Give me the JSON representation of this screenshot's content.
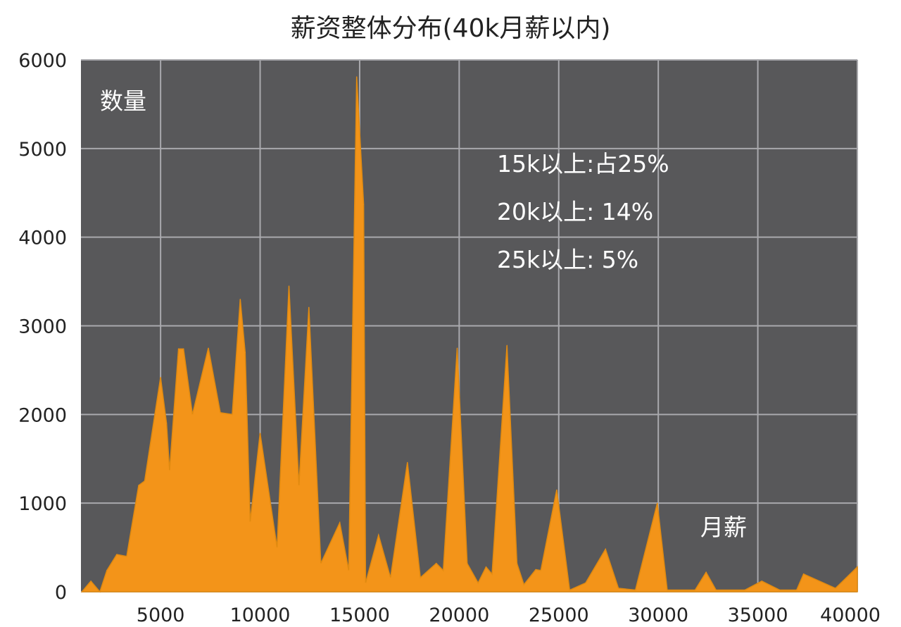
{
  "chart_data": {
    "type": "area",
    "title": "薪资整体分布(40k月薪以内)",
    "xlabel": "月薪",
    "ylabel": "数量",
    "xlim": [
      1000,
      40000
    ],
    "ylim": [
      0,
      6000
    ],
    "grid": true,
    "x_ticks": [
      5000,
      10000,
      15000,
      20000,
      25000,
      30000,
      35000,
      40000
    ],
    "y_ticks": [
      0,
      1000,
      2000,
      3000,
      4000,
      5000,
      6000
    ],
    "annotations": [
      "15k以上:占25%",
      "20k以上: 14%",
      "25k以上: 5%"
    ],
    "colors": {
      "fill": "#f39419",
      "plot_background": "#58585a",
      "grid": "#a9a9ad"
    },
    "x": [
      1050,
      1500,
      1950,
      2300,
      2800,
      3300,
      3900,
      4200,
      5000,
      5300,
      5450,
      5900,
      6150,
      6600,
      7400,
      8000,
      8600,
      9000,
      9250,
      9500,
      10000,
      10850,
      11450,
      11950,
      12450,
      13050,
      14000,
      14450,
      14850,
      15200,
      15300,
      15950,
      16550,
      17400,
      18050,
      18850,
      19200,
      19900,
      20400,
      20950,
      21350,
      21650,
      22400,
      22900,
      23250,
      23850,
      24100,
      24900,
      25550,
      26350,
      27350,
      28000,
      28850,
      29950,
      30450,
      31850,
      32400,
      32900,
      34350,
      35200,
      36100,
      36950,
      37300,
      38900,
      40000
    ],
    "values": [
      0,
      120,
      0,
      240,
      420,
      400,
      1200,
      1250,
      2420,
      1900,
      1370,
      2740,
      2740,
      2000,
      2750,
      2020,
      2000,
      3300,
      2700,
      790,
      1790,
      500,
      3450,
      1200,
      3210,
      320,
      780,
      240,
      5810,
      4370,
      100,
      640,
      160,
      1460,
      160,
      320,
      240,
      2750,
      320,
      100,
      280,
      200,
      2780,
      320,
      80,
      250,
      240,
      1150,
      20,
      100,
      480,
      40,
      20,
      1000,
      20,
      20,
      220,
      20,
      20,
      120,
      20,
      20,
      200,
      40,
      280
    ]
  }
}
